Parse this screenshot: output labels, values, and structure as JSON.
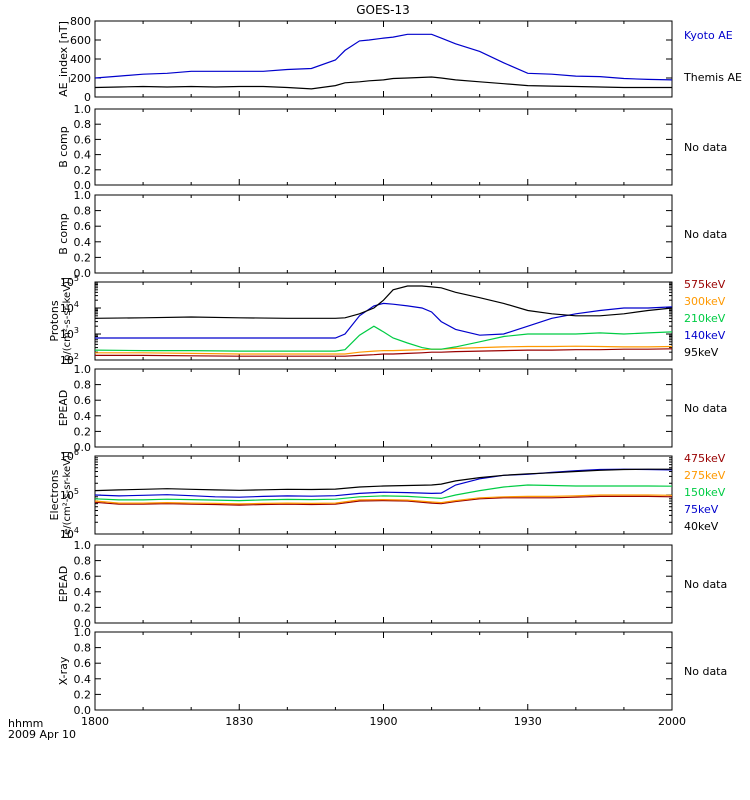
{
  "title": "GOES-13",
  "time_axis": {
    "tick_labels": [
      "1800",
      "1830",
      "1900",
      "1930",
      "2000"
    ],
    "range_minutes": [
      0,
      120
    ],
    "label_line1": "hhmm",
    "label_line2": "2009 Apr 10"
  },
  "chart_data": [
    {
      "type": "line",
      "ylabel": "AE_index [nT]",
      "ylim": [
        0,
        800
      ],
      "yticks": [
        "0",
        "200",
        "400",
        "600",
        "800"
      ],
      "x_minutes": [
        0,
        5,
        10,
        15,
        20,
        25,
        30,
        35,
        40,
        45,
        50,
        52,
        55,
        57,
        60,
        62,
        65,
        70,
        72,
        75,
        80,
        85,
        90,
        95,
        100,
        105,
        110,
        115,
        120
      ],
      "series": [
        {
          "name": "Kyoto AE",
          "color": "#0000cc",
          "values": [
            200,
            220,
            240,
            250,
            270,
            270,
            270,
            270,
            290,
            300,
            390,
            490,
            590,
            600,
            620,
            630,
            660,
            660,
            620,
            560,
            480,
            360,
            250,
            240,
            220,
            215,
            195,
            185,
            180
          ]
        },
        {
          "name": "Themis AE",
          "color": "#000000",
          "values": [
            100,
            105,
            110,
            105,
            110,
            105,
            110,
            110,
            100,
            85,
            120,
            150,
            160,
            170,
            180,
            195,
            200,
            210,
            200,
            180,
            160,
            140,
            120,
            115,
            110,
            105,
            100,
            100,
            100
          ]
        }
      ]
    },
    {
      "type": "line",
      "ylabel": "B comp",
      "ylim": [
        0,
        1
      ],
      "yticks": [
        "0.0",
        "0.2",
        "0.4",
        "0.6",
        "0.8",
        "1.0"
      ],
      "note": "No data",
      "series": []
    },
    {
      "type": "line",
      "ylabel": "B comp",
      "ylim": [
        0,
        1
      ],
      "yticks": [
        "0.0",
        "0.2",
        "0.4",
        "0.6",
        "0.8",
        "1.0"
      ],
      "note": "No data",
      "series": []
    },
    {
      "type": "line",
      "log": true,
      "ylabel_line1": "Protons",
      "ylabel_line2": "[p/(cm²-s-sr-keV)]",
      "ylim_exp": [
        2,
        5
      ],
      "ytick_exps": [
        2,
        3,
        4,
        5
      ],
      "x_minutes": [
        0,
        10,
        20,
        30,
        40,
        50,
        52,
        55,
        58,
        60,
        62,
        65,
        68,
        70,
        72,
        75,
        80,
        85,
        90,
        95,
        100,
        105,
        110,
        115,
        120
      ],
      "series": [
        {
          "name": "575keV",
          "color": "#990000",
          "values": [
            150,
            150,
            145,
            140,
            140,
            140,
            140,
            150,
            160,
            170,
            170,
            180,
            190,
            200,
            200,
            210,
            220,
            230,
            240,
            240,
            250,
            250,
            260,
            260,
            270
          ]
        },
        {
          "name": "300keV",
          "color": "#ff9900",
          "values": [
            190,
            190,
            180,
            170,
            170,
            170,
            170,
            200,
            220,
            230,
            230,
            240,
            250,
            260,
            260,
            280,
            300,
            320,
            330,
            330,
            340,
            330,
            320,
            320,
            330
          ]
        },
        {
          "name": "210keV",
          "color": "#00cc44",
          "values": [
            240,
            230,
            230,
            220,
            220,
            220,
            250,
            900,
            2000,
            1200,
            700,
            450,
            300,
            260,
            260,
            320,
            500,
            800,
            1000,
            1000,
            1000,
            1100,
            1000,
            1100,
            1200
          ]
        },
        {
          "name": "140keV",
          "color": "#0000cc",
          "values": [
            700,
            700,
            700,
            700,
            700,
            700,
            1000,
            5000,
            12000,
            15000,
            14000,
            12000,
            10000,
            7000,
            3000,
            1500,
            900,
            1000,
            2000,
            4000,
            6000,
            8000,
            10000,
            10000,
            11000
          ]
        },
        {
          "name": "95keV",
          "color": "#000000",
          "values": [
            4000,
            4200,
            4500,
            4200,
            4000,
            4000,
            4200,
            6000,
            10000,
            20000,
            50000,
            70000,
            70000,
            65000,
            60000,
            40000,
            25000,
            15000,
            8000,
            6000,
            5000,
            5000,
            6000,
            8000,
            10000
          ]
        }
      ]
    },
    {
      "type": "line",
      "ylabel": "EPEAD",
      "ylim": [
        0,
        1
      ],
      "yticks": [
        "0.0",
        "0.2",
        "0.4",
        "0.6",
        "0.8",
        "1.0"
      ],
      "note": "No data",
      "series": []
    },
    {
      "type": "line",
      "log": true,
      "ylabel_line1": "Electrons",
      "ylabel_line2": "[e/(cm²-s-sr-keV)]",
      "ylim_exp": [
        4,
        6
      ],
      "ytick_exps": [
        4,
        5,
        6
      ],
      "x_minutes": [
        0,
        5,
        10,
        15,
        20,
        25,
        30,
        35,
        40,
        45,
        50,
        55,
        60,
        65,
        70,
        72,
        75,
        80,
        85,
        90,
        95,
        100,
        105,
        110,
        115,
        120
      ],
      "series": [
        {
          "name": "475keV",
          "color": "#990000",
          "values": [
            65000,
            58000,
            58000,
            60000,
            58000,
            57000,
            55000,
            57000,
            58000,
            57000,
            58000,
            70000,
            72000,
            70000,
            62000,
            60000,
            68000,
            80000,
            85000,
            85000,
            85000,
            88000,
            92000,
            92000,
            92000,
            90000
          ]
        },
        {
          "name": "275keV",
          "color": "#ff9900",
          "values": [
            70000,
            62000,
            62000,
            64000,
            62000,
            61000,
            59000,
            61000,
            62000,
            61000,
            62000,
            75000,
            76000,
            74000,
            66000,
            64000,
            72000,
            85000,
            90000,
            92000,
            92000,
            95000,
            100000,
            100000,
            100000,
            98000
          ]
        },
        {
          "name": "150keV",
          "color": "#00cc44",
          "values": [
            80000,
            75000,
            75000,
            78000,
            76000,
            74000,
            72000,
            75000,
            77000,
            76000,
            78000,
            90000,
            95000,
            92000,
            85000,
            82000,
            100000,
            130000,
            160000,
            180000,
            175000,
            170000,
            170000,
            170000,
            170000,
            168000
          ]
        },
        {
          "name": "75keV",
          "color": "#0000cc",
          "values": [
            100000,
            95000,
            98000,
            102000,
            96000,
            90000,
            88000,
            92000,
            95000,
            93000,
            96000,
            110000,
            118000,
            115000,
            110000,
            112000,
            180000,
            260000,
            320000,
            340000,
            380000,
            420000,
            450000,
            460000,
            450000,
            440000
          ]
        },
        {
          "name": "40keV",
          "color": "#000000",
          "values": [
            130000,
            135000,
            140000,
            145000,
            140000,
            135000,
            132000,
            136000,
            140000,
            138000,
            142000,
            160000,
            170000,
            175000,
            180000,
            190000,
            230000,
            280000,
            320000,
            350000,
            370000,
            400000,
            430000,
            450000,
            460000,
            460000
          ]
        }
      ]
    },
    {
      "type": "line",
      "ylabel": "EPEAD",
      "ylim": [
        0,
        1
      ],
      "yticks": [
        "0.0",
        "0.2",
        "0.4",
        "0.6",
        "0.8",
        "1.0"
      ],
      "note": "No data",
      "series": []
    },
    {
      "type": "line",
      "ylabel": "X-ray",
      "ylim": [
        0,
        1
      ],
      "yticks": [
        "0.0",
        "0.2",
        "0.4",
        "0.6",
        "0.8",
        "1.0"
      ],
      "note": "No data",
      "series": []
    }
  ]
}
